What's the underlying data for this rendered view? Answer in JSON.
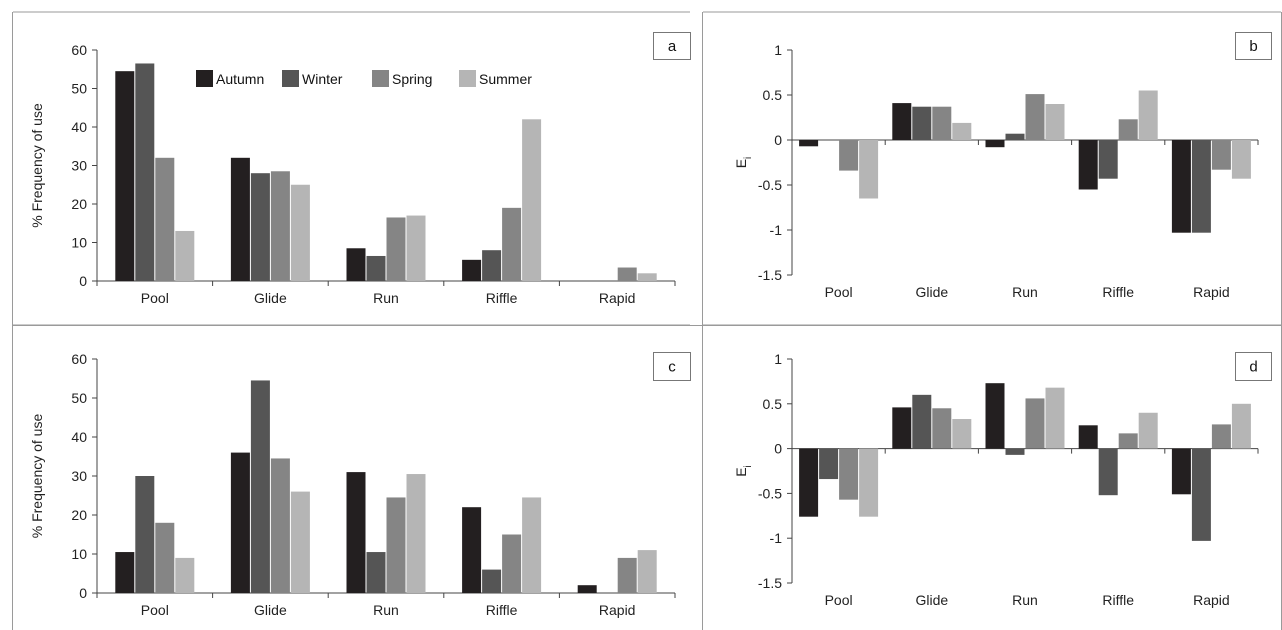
{
  "series_colors": [
    "#231f20",
    "#555555",
    "#858585",
    "#b5b5b5"
  ],
  "frame_color": "#9a9a9a",
  "legend": {
    "entries": [
      "Autumn",
      "Winter",
      "Spring",
      "Summer"
    ],
    "placement": "top-right of panel a"
  },
  "chart_data": [
    {
      "panel": "a",
      "type": "bar",
      "ylabel": "% Frequency of use",
      "ylim": [
        0,
        60
      ],
      "yticks": [
        "60",
        "50",
        "40",
        "30",
        "20",
        "10",
        "0"
      ],
      "categories": [
        "Pool",
        "Glide",
        "Run",
        "Riffle",
        "Rapid"
      ],
      "series": [
        {
          "name": "Autumn",
          "values": [
            54.5,
            32,
            8.5,
            5.5,
            0
          ]
        },
        {
          "name": "Winter",
          "values": [
            56.5,
            28,
            6.5,
            8,
            0
          ]
        },
        {
          "name": "Spring",
          "values": [
            32,
            28.5,
            16.5,
            19,
            3.5
          ]
        },
        {
          "name": "Summer",
          "values": [
            13,
            25,
            17,
            42,
            2
          ]
        }
      ]
    },
    {
      "panel": "b",
      "type": "bar",
      "ylabel": "E",
      "ylabel_sub": "i",
      "ylim": [
        -1.5,
        1
      ],
      "yticks": [
        "1",
        "0.5",
        "0",
        "-0.5",
        "-1",
        "-1.5"
      ],
      "categories": [
        "Pool",
        "Glide",
        "Run",
        "Riffle",
        "Rapid"
      ],
      "series": [
        {
          "name": "Autumn",
          "values": [
            -0.07,
            0.41,
            -0.08,
            -0.55,
            -1.03
          ]
        },
        {
          "name": "Winter",
          "values": [
            0,
            0.37,
            0.07,
            -0.43,
            -1.03
          ]
        },
        {
          "name": "Spring",
          "values": [
            -0.34,
            0.37,
            0.51,
            0.23,
            -0.33
          ]
        },
        {
          "name": "Summer",
          "values": [
            -0.65,
            0.19,
            0.4,
            0.55,
            -0.43
          ]
        }
      ]
    },
    {
      "panel": "c",
      "type": "bar",
      "ylabel": "% Frequency of use",
      "ylim": [
        0,
        60
      ],
      "yticks": [
        "60",
        "50",
        "40",
        "30",
        "20",
        "10",
        "0"
      ],
      "categories": [
        "Pool",
        "Glide",
        "Run",
        "Riffle",
        "Rapid"
      ],
      "series": [
        {
          "name": "Autumn",
          "values": [
            10.5,
            36,
            31,
            22,
            2
          ]
        },
        {
          "name": "Winter",
          "values": [
            30,
            54.5,
            10.5,
            6,
            0
          ]
        },
        {
          "name": "Spring",
          "values": [
            18,
            34.5,
            24.5,
            15,
            9
          ]
        },
        {
          "name": "Summer",
          "values": [
            9,
            26,
            30.5,
            24.5,
            11
          ]
        }
      ]
    },
    {
      "panel": "d",
      "type": "bar",
      "ylabel": "E",
      "ylabel_sub": "i",
      "ylim": [
        -1.5,
        1
      ],
      "yticks": [
        "1",
        "0.5",
        "0",
        "-0.5",
        "-1",
        "-1.5"
      ],
      "categories": [
        "Pool",
        "Glide",
        "Run",
        "Riffle",
        "Rapid"
      ],
      "series": [
        {
          "name": "Autumn",
          "values": [
            -0.76,
            0.46,
            0.73,
            0.26,
            -0.51
          ]
        },
        {
          "name": "Winter",
          "values": [
            -0.34,
            0.6,
            -0.07,
            -0.52,
            -1.03
          ]
        },
        {
          "name": "Spring",
          "values": [
            -0.57,
            0.45,
            0.56,
            0.17,
            0.27
          ]
        },
        {
          "name": "Summer",
          "values": [
            -0.76,
            0.33,
            0.68,
            0.4,
            0.5
          ]
        }
      ]
    }
  ]
}
